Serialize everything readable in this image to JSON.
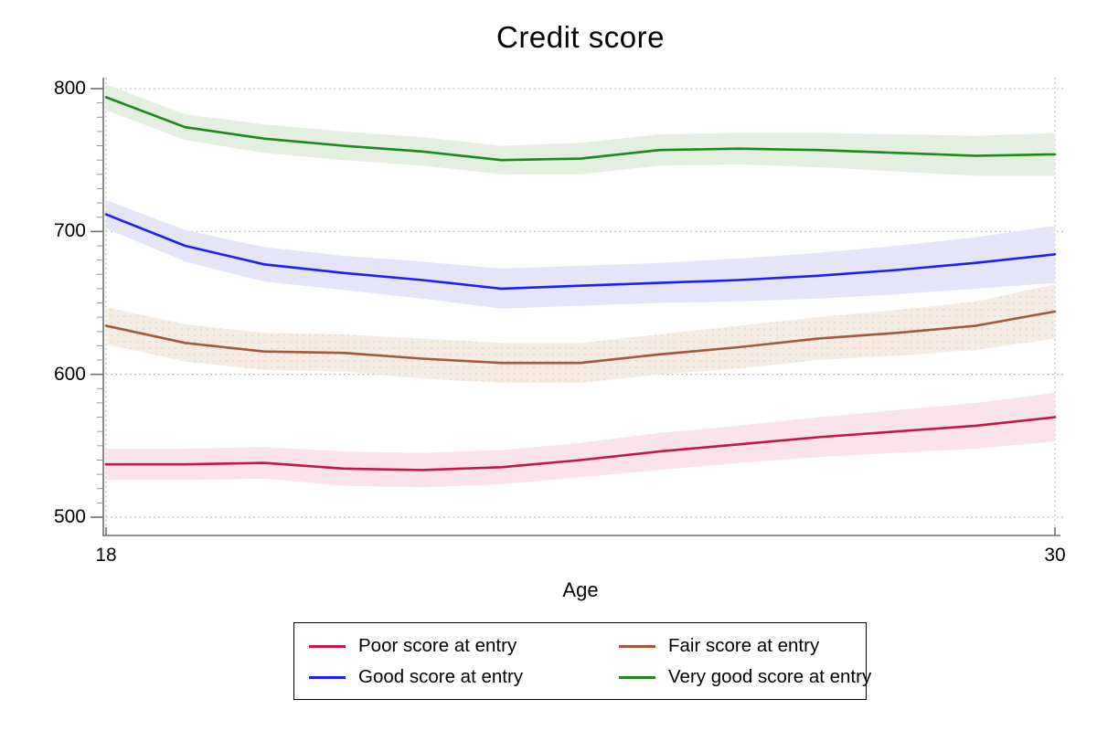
{
  "title": "Credit score",
  "axes": {
    "x_title": "Age",
    "x_ticks": [
      {
        "label": "18",
        "value": 18
      },
      {
        "label": "30",
        "value": 30
      }
    ],
    "y_ticks": [
      {
        "label": "500",
        "value": 500
      },
      {
        "label": "600",
        "value": 600
      },
      {
        "label": "700",
        "value": 700
      },
      {
        "label": "800",
        "value": 800
      }
    ],
    "x_range": [
      18,
      30
    ],
    "y_range": [
      500,
      800
    ],
    "grid": "dotted horizontal at y ticks, dotted vertical at x ticks"
  },
  "colors": {
    "poor_line": "#C41647",
    "poor_band": "#FAE3EA",
    "good_line": "#1C1CFF",
    "good_band": "#E5E5F9",
    "fair_line": "#A35A3C",
    "fair_band": "#F5ECE4",
    "fair_band_dots": "#DFCABB",
    "verygood_line": "#1B8A1B",
    "verygood_band": "#E4EFE1",
    "axis": "#707070",
    "gridline": "#A8A8A8"
  },
  "legend": {
    "position": "bottom-center",
    "entries": [
      {
        "label": "Poor score at entry",
        "color": "#C41647"
      },
      {
        "label": "Fair score at entry",
        "color": "#A35A3C"
      },
      {
        "label": "Good score at entry",
        "color": "#1C1CFF"
      },
      {
        "label": "Very good score at entry",
        "color": "#1B8A1B"
      }
    ]
  },
  "chart_data": {
    "type": "line",
    "title": "Credit score",
    "xlabel": "Age",
    "ylabel": "",
    "x": [
      18,
      19,
      20,
      21,
      22,
      23,
      24,
      25,
      26,
      27,
      28,
      29,
      30
    ],
    "xlim": [
      18,
      30
    ],
    "ylim": [
      500,
      800
    ],
    "legend_position": "bottom",
    "grid": true,
    "series": [
      {
        "name": "Poor score at entry",
        "color": "#C41647",
        "band_color": "#FAE3EA",
        "values": [
          537,
          537,
          538,
          534,
          533,
          535,
          540,
          546,
          551,
          556,
          560,
          564,
          570
        ],
        "ci_halfwidth": [
          11,
          11,
          11,
          12,
          12,
          12,
          12,
          13,
          13,
          14,
          15,
          16,
          17
        ]
      },
      {
        "name": "Good score at entry",
        "color": "#1C1CFF",
        "band_color": "#E5E5F9",
        "values": [
          712,
          690,
          677,
          671,
          666,
          660,
          662,
          664,
          666,
          669,
          673,
          678,
          684
        ],
        "ci_halfwidth": [
          10,
          11,
          12,
          12,
          13,
          14,
          14,
          14,
          15,
          16,
          17,
          18,
          20
        ]
      },
      {
        "name": "Fair score at entry",
        "color": "#A35A3C",
        "band_color": "#F5ECE4",
        "band_texture": "dots",
        "values": [
          634,
          622,
          616,
          615,
          611,
          608,
          608,
          614,
          619,
          625,
          629,
          634,
          644
        ],
        "ci_halfwidth": [
          13,
          13,
          13,
          13,
          14,
          14,
          14,
          14,
          15,
          15,
          16,
          17,
          19
        ]
      },
      {
        "name": "Very good score at entry",
        "color": "#1B8A1B",
        "band_color": "#E4EFE1",
        "values": [
          794,
          773,
          765,
          760,
          756,
          750,
          751,
          757,
          758,
          757,
          755,
          753,
          754
        ],
        "ci_halfwidth": [
          9,
          9,
          10,
          10,
          10,
          10,
          11,
          11,
          11,
          12,
          13,
          14,
          15
        ]
      }
    ]
  }
}
